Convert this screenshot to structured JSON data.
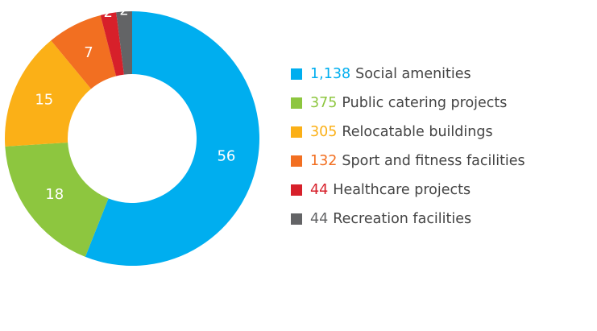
{
  "chart_data": {
    "type": "pie",
    "categories": [
      "Social amenities",
      "Public catering projects",
      "Relocatable buildings",
      "Sport and fitness facilities",
      "Healthcare projects",
      "Recreation facilities"
    ],
    "values": [
      56,
      18,
      15,
      7,
      2,
      2
    ],
    "colors": [
      "#00aeef",
      "#8dc63f",
      "#fbb017",
      "#f26f21",
      "#d7202a",
      "#636466"
    ],
    "counts": [
      {
        "value": 1138,
        "label": "1,138"
      },
      375,
      305,
      132,
      44,
      44
    ]
  }
}
